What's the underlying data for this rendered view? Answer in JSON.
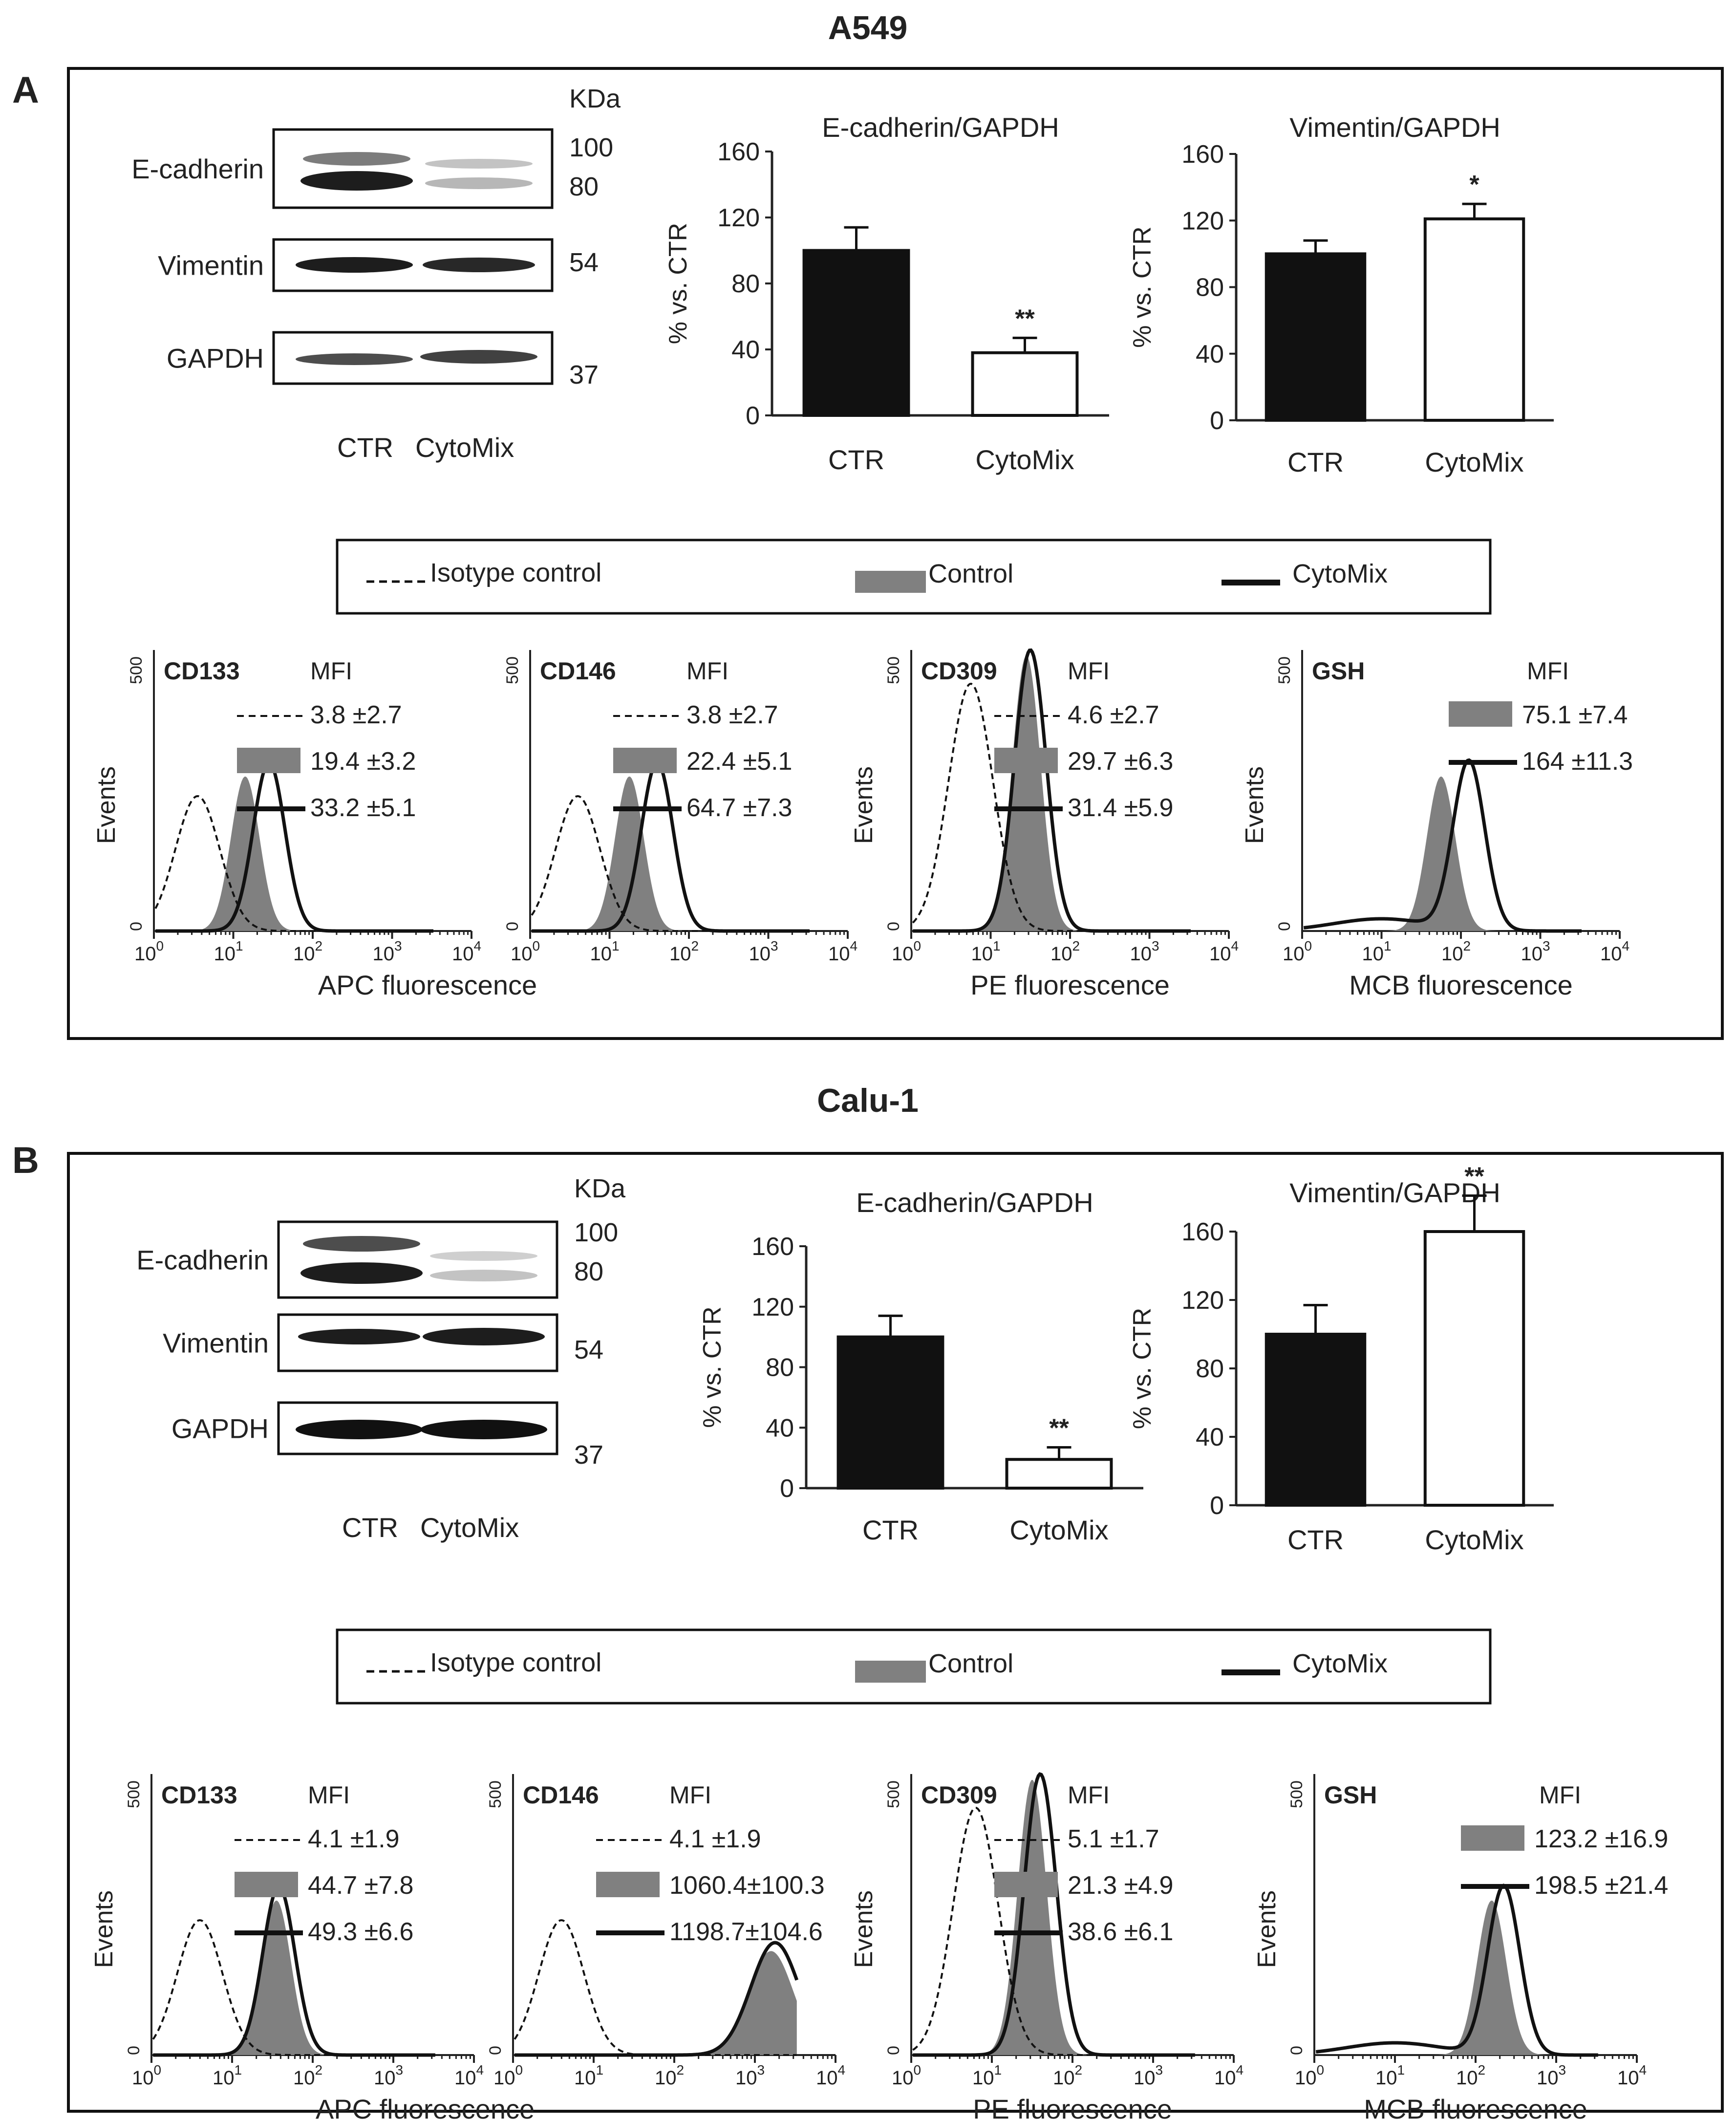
{
  "panels": [
    {
      "letter": "A",
      "cell_line": "A549",
      "western": {
        "kda_label": "KDa",
        "bands": [
          {
            "name": "E-cadherin",
            "kda": [
              "100",
              "80"
            ]
          },
          {
            "name": "Vimentin",
            "kda": [
              "54"
            ]
          },
          {
            "name": "GAPDH",
            "kda": [
              "37"
            ]
          }
        ],
        "lanes": [
          "CTR",
          "CytoMix"
        ]
      },
      "legend": {
        "isotype": "Isotype control",
        "control": "Control",
        "cytomix": "CytoMix"
      },
      "histograms": [
        {
          "marker": "CD133",
          "mfi_label": "MFI",
          "mfi": [
            "3.8 ±2.7",
            "19.4 ±3.2",
            "33.2 ±5.1"
          ],
          "xlabel": "APC fluorescence",
          "ylabel": "Events",
          "peaks": {
            "iso": 0.55,
            "ctrl": 1.15,
            "cyto": 1.45
          }
        },
        {
          "marker": "CD146",
          "mfi_label": "MFI",
          "mfi": [
            "3.8 ±2.7",
            "22.4 ±5.1",
            "64.7 ±7.3"
          ],
          "xlabel": "",
          "ylabel": "",
          "peaks": {
            "iso": 0.6,
            "ctrl": 1.25,
            "cyto": 1.6
          }
        },
        {
          "marker": "CD309",
          "mfi_label": "MFI",
          "mfi": [
            "4.6 ±2.7",
            "29.7 ±6.3",
            "31.4 ±5.9"
          ],
          "xlabel": "PE fluorescence",
          "ylabel": "Events",
          "peaks": {
            "iso": 0.75,
            "ctrl": 1.45,
            "cyto": 1.5
          }
        },
        {
          "marker": "GSH",
          "mfi_label": "MFI",
          "mfi": [
            "",
            "75.1 ±7.4",
            "164 ±11.3"
          ],
          "xlabel": "MCB fluorescence",
          "ylabel": "Events",
          "peaks": {
            "iso": null,
            "ctrl": 1.75,
            "cyto": 2.1
          }
        }
      ]
    },
    {
      "letter": "B",
      "cell_line": "Calu-1",
      "western": {
        "kda_label": "KDa",
        "bands": [
          {
            "name": "E-cadherin",
            "kda": [
              "100",
              "80"
            ]
          },
          {
            "name": "Vimentin",
            "kda": [
              "54"
            ]
          },
          {
            "name": "GAPDH",
            "kda": [
              "37"
            ]
          }
        ],
        "lanes": [
          "CTR",
          "CytoMix"
        ]
      },
      "legend": {
        "isotype": "Isotype control",
        "control": "Control",
        "cytomix": "CytoMix"
      },
      "histograms": [
        {
          "marker": "CD133",
          "mfi_label": "MFI",
          "mfi": [
            "4.1 ±1.9",
            "44.7 ±7.8",
            "49.3 ±6.6"
          ],
          "xlabel": "APC fluorescence",
          "ylabel": "Events",
          "peaks": {
            "iso": 0.6,
            "ctrl": 1.55,
            "cyto": 1.58
          }
        },
        {
          "marker": "CD146",
          "mfi_label": "MFI",
          "mfi": [
            "4.1 ±1.9",
            "1060.4±100.3",
            "1198.7±104.6"
          ],
          "xlabel": "",
          "ylabel": "",
          "peaks": {
            "iso": 0.6,
            "ctrl": 3.2,
            "cyto": 3.25
          }
        },
        {
          "marker": "CD309",
          "mfi_label": "MFI",
          "mfi": [
            "5.1 ±1.7",
            "21.3 ±4.9",
            "38.6 ±6.1"
          ],
          "xlabel": "PE fluorescence",
          "ylabel": "Events",
          "peaks": {
            "iso": 0.8,
            "ctrl": 1.5,
            "cyto": 1.6
          }
        },
        {
          "marker": "GSH",
          "mfi_label": "MFI",
          "mfi": [
            "",
            "123.2 ±16.9",
            "198.5 ±21.4"
          ],
          "xlabel": "MCB fluorescence",
          "ylabel": "Events",
          "peaks": {
            "iso": null,
            "ctrl": 2.2,
            "cyto": 2.35
          }
        }
      ]
    }
  ],
  "chart_data": [
    {
      "type": "bar",
      "panel": "A",
      "title": "E-cadherin/GAPDH",
      "categories": [
        "CTR",
        "CytoMix"
      ],
      "values": [
        100,
        38
      ],
      "errors": [
        14,
        9
      ],
      "significance": [
        "",
        "**"
      ],
      "ylabel": "% vs. CTR",
      "ylim": [
        0,
        160
      ],
      "yticks": [
        0,
        40,
        80,
        120,
        160
      ]
    },
    {
      "type": "bar",
      "panel": "A",
      "title": "Vimentin/GAPDH",
      "categories": [
        "CTR",
        "CytoMix"
      ],
      "values": [
        100,
        121
      ],
      "errors": [
        8,
        9
      ],
      "significance": [
        "",
        "*"
      ],
      "ylabel": "% vs. CTR",
      "ylim": [
        0,
        160
      ],
      "yticks": [
        0,
        40,
        80,
        120,
        160
      ]
    },
    {
      "type": "bar",
      "panel": "B",
      "title": "E-cadherin/GAPDH",
      "categories": [
        "CTR",
        "CytoMix"
      ],
      "values": [
        100,
        19
      ],
      "errors": [
        14,
        8
      ],
      "significance": [
        "",
        "**"
      ],
      "ylabel": "% vs. CTR",
      "ylim": [
        0,
        160
      ],
      "yticks": [
        0,
        40,
        80,
        120,
        160
      ]
    },
    {
      "type": "bar",
      "panel": "B",
      "title": "Vimentin/GAPDH",
      "categories": [
        "CTR",
        "CytoMix"
      ],
      "values": [
        100,
        160
      ],
      "errors": [
        17,
        21
      ],
      "significance": [
        "",
        "**"
      ],
      "ylabel": "% vs. CTR",
      "ylim": [
        0,
        160
      ],
      "yticks": [
        0,
        40,
        80,
        120,
        160
      ]
    },
    {
      "type": "histogram",
      "panel": "A",
      "xscale": "log",
      "xticks": [
        "10^0",
        "10^1",
        "10^2",
        "10^3",
        "10^4"
      ],
      "yticks": [
        0,
        500
      ],
      "note": "flow cytometry overlays: isotype control (dashed), Control (grey fill), CytoMix (black line)"
    },
    {
      "type": "histogram",
      "panel": "B",
      "xscale": "log",
      "xticks": [
        "10^0",
        "10^1",
        "10^2",
        "10^3",
        "10^4"
      ],
      "yticks": [
        0,
        500
      ]
    }
  ]
}
